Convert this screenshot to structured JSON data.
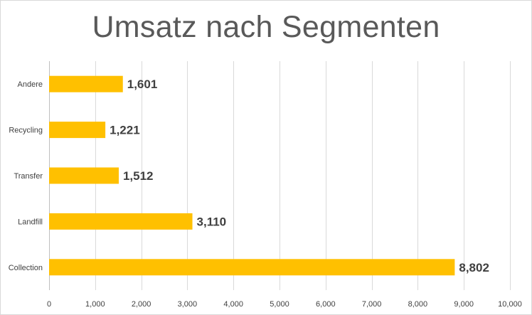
{
  "chart_data": {
    "type": "bar",
    "orientation": "horizontal",
    "title": "Umsatz nach Segmenten",
    "categories": [
      "Andere",
      "Recycling",
      "Transfer",
      "Landfill",
      "Collection"
    ],
    "values": [
      1601,
      1221,
      1512,
      3110,
      8802
    ],
    "data_labels": [
      "1,601",
      "1,221",
      "1,512",
      "3,110",
      "8,802"
    ],
    "xlim": [
      0,
      10000
    ],
    "x_ticks": [
      0,
      1000,
      2000,
      3000,
      4000,
      5000,
      6000,
      7000,
      8000,
      9000,
      10000
    ],
    "x_tick_labels": [
      "0",
      "1,000",
      "2,000",
      "3,000",
      "4,000",
      "5,000",
      "6,000",
      "7,000",
      "8,000",
      "9,000",
      "10,000"
    ],
    "bar_color": "#FFC000",
    "grid": "vertical",
    "legend": "none"
  }
}
